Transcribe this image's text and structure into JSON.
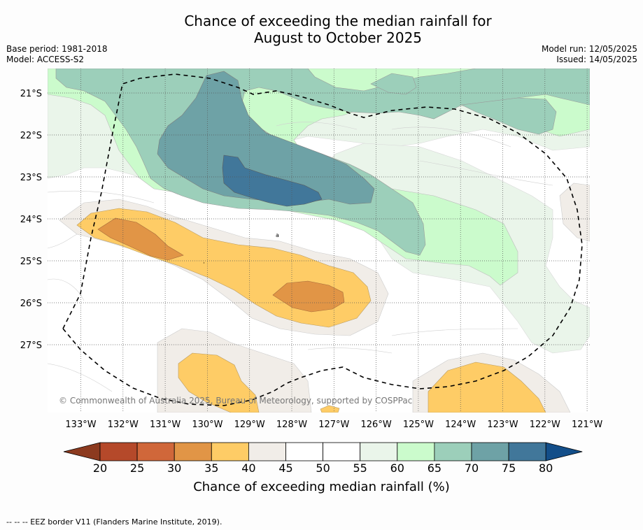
{
  "title": {
    "line1": "Chance of exceeding the median rainfall for",
    "line2": "August to October 2025"
  },
  "meta": {
    "base_period": "Base period: 1981-2018",
    "model": "Model: ACCESS-S2",
    "model_run": "Model run: 12/05/2025",
    "issued": "Issued: 14/05/2025"
  },
  "map": {
    "lat_labels": [
      "21°S",
      "22°S",
      "23°S",
      "24°S",
      "25°S",
      "26°S",
      "27°S"
    ],
    "lon_labels": [
      "133°W",
      "132°W",
      "131°W",
      "130°W",
      "129°W",
      "128°W",
      "127°W",
      "126°W",
      "125°W",
      "124°W",
      "123°W",
      "122°W",
      "121°W"
    ],
    "copyright": "© Commonwealth of Australia 2025, Bureau of Meteorology, supported by COSPPac",
    "stray_mark": "a"
  },
  "colorbar": {
    "ticks": [
      "20",
      "25",
      "30",
      "35",
      "40",
      "45",
      "50",
      "55",
      "60",
      "65",
      "70",
      "75",
      "80"
    ],
    "label": "Chance of exceeding median rainfall (%)",
    "colors": [
      "#8c3a1f",
      "#b5492a",
      "#d0673a",
      "#e19546",
      "#fecc66",
      "#f1ede8",
      "#ffffff",
      "#ffffff",
      "#eaf5ea",
      "#cbfbcc",
      "#9ccfba",
      "#6ea2a6",
      "#41779a",
      "#134e89"
    ]
  },
  "footnote": "--  --  -- EEZ border V11 (Flanders Marine Institute, 2019)."
}
